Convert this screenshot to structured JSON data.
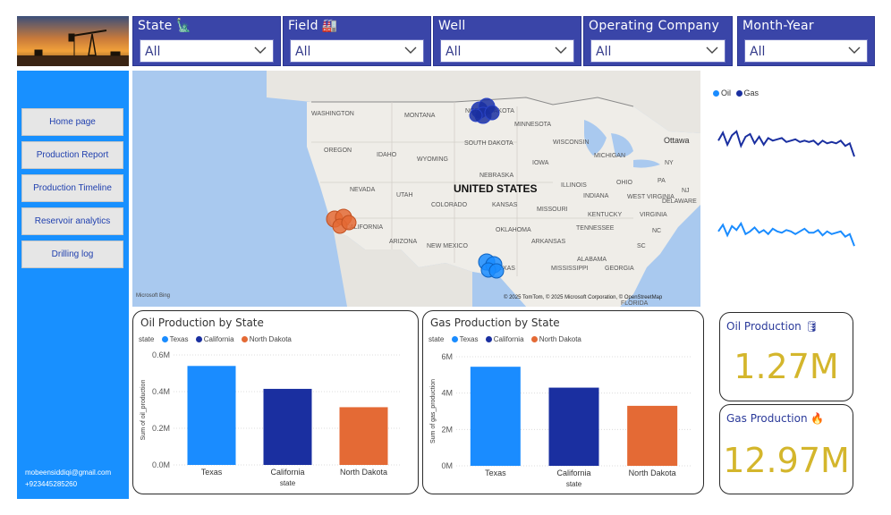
{
  "filters": [
    {
      "label": "State",
      "emoji": "🗽",
      "value": "All"
    },
    {
      "label": "Field",
      "emoji": "🏭",
      "value": "All"
    },
    {
      "label": "Well",
      "emoji": "",
      "value": "All"
    },
    {
      "label": "Operating Company",
      "emoji": "",
      "value": "All"
    },
    {
      "label": "Month-Year",
      "emoji": "",
      "value": "All"
    }
  ],
  "nav": [
    {
      "label": "Home page"
    },
    {
      "label": "Production Report"
    },
    {
      "label": "Production Timeline"
    },
    {
      "label": "Reservoir analytics"
    },
    {
      "label": "Drilling log"
    }
  ],
  "contact": {
    "email": "mobeensiddiqi@gmail.com",
    "phone": "+923445285260"
  },
  "map": {
    "country_label": "UNITED STATES",
    "attribution": "© 2025 TomTom, © 2025 Microsoft Corporation, © OpenStreetMap",
    "bing_logo": "Microsoft Bing",
    "state_labels": [
      "WASHINGTON",
      "MONTANA",
      "NORTH DAKOTA",
      "MINNESOTA",
      "OREGON",
      "IDAHO",
      "WYOMING",
      "SOUTH DAKOTA",
      "WISCONSIN",
      "MICHIGAN",
      "IOWA",
      "NEBRASKA",
      "NEVADA",
      "UTAH",
      "COLORADO",
      "KANSAS",
      "MISSOURI",
      "ILLINOIS",
      "INDIANA",
      "OHIO",
      "PA",
      "NY",
      "NJ",
      "DELAWARE",
      "WEST VIRGINIA",
      "VIRGINIA",
      "KENTUCKY",
      "TENNESSEE",
      "NC",
      "SC",
      "OKLAHOMA",
      "ARKANSAS",
      "ARIZONA",
      "NEW MEXICO",
      "TEXAS",
      "MISSISSIPPI",
      "ALABAMA",
      "GEORGIA",
      "CALIFORNIA",
      "FLORIDA",
      "Ottawa"
    ],
    "colors": {
      "texas": "#1a8cff",
      "california": "#e46a35",
      "north_dakota": "#1a2fa0"
    }
  },
  "sparklines": {
    "legend": [
      "Oil",
      "Gas"
    ],
    "colors": {
      "oil": "#1a8cff",
      "gas": "#1a2fa0"
    },
    "gas_values": [
      3.6,
      4.2,
      3.3,
      4.0,
      4.3,
      3.2,
      3.9,
      4.1,
      3.4,
      3.9,
      3.3,
      3.8,
      3.6,
      3.7,
      3.8,
      3.5,
      3.6,
      3.7,
      3.5,
      3.6,
      3.5,
      3.6,
      3.3,
      3.6,
      3.4,
      3.5,
      3.4,
      3.6,
      3.2,
      3.4,
      2.4
    ],
    "oil_values": [
      3.5,
      4.0,
      3.2,
      3.9,
      3.6,
      4.1,
      3.3,
      3.5,
      3.8,
      3.4,
      3.6,
      3.3,
      3.7,
      3.5,
      3.4,
      3.6,
      3.5,
      3.3,
      3.5,
      3.7,
      3.4,
      3.4,
      3.6,
      3.2,
      3.5,
      3.3,
      3.4,
      3.5,
      3.1,
      3.3,
      2.4
    ]
  },
  "oil_card": {
    "title": "Oil Production by State",
    "legend_title": "state",
    "y_axis_title": "Sum of oil_production",
    "x_axis_title": "state"
  },
  "gas_card": {
    "title": "Gas Production by State",
    "legend_title": "state",
    "y_axis_title": "Sum of gas_production",
    "x_axis_title": "state"
  },
  "kpis": [
    {
      "title": "Oil Production",
      "emoji": "🛢",
      "value": "1.27M"
    },
    {
      "title": "Gas Production",
      "emoji": "🔥",
      "value": "12.97M"
    }
  ],
  "chart_data": [
    {
      "type": "bar",
      "title": "Oil Production by State",
      "categories": [
        "Texas",
        "California",
        "North Dakota"
      ],
      "values": [
        0.54,
        0.415,
        0.315
      ],
      "value_unit": "M",
      "colors": [
        "#1a8cff",
        "#1a2fa0",
        "#e46a35"
      ],
      "yticks": [
        "0.0M",
        "0.2M",
        "0.4M",
        "0.6M"
      ],
      "ylim": [
        0,
        0.6
      ],
      "xlabel": "state",
      "ylabel": "Sum of oil_production",
      "legend_title": "state",
      "grid": true
    },
    {
      "type": "bar",
      "title": "Gas Production by State",
      "categories": [
        "Texas",
        "California",
        "North Dakota"
      ],
      "values": [
        5.45,
        4.3,
        3.3
      ],
      "value_unit": "M",
      "colors": [
        "#1a8cff",
        "#1a2fa0",
        "#e46a35"
      ],
      "yticks": [
        "0M",
        "2M",
        "4M",
        "6M"
      ],
      "ylim": [
        0,
        6
      ],
      "xlabel": "state",
      "ylabel": "Sum of gas_production",
      "legend_title": "state",
      "grid": true
    }
  ]
}
